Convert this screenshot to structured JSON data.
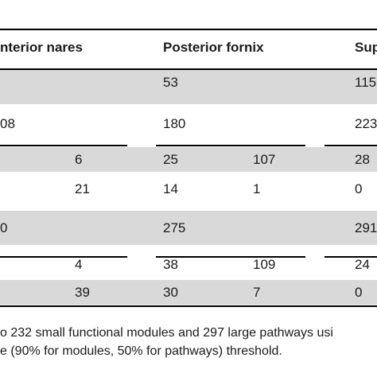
{
  "table": {
    "headers": [
      "nterior nares",
      "Posterior fornix",
      "Sup"
    ],
    "rows": [
      {
        "cells": [
          "",
          "53",
          "",
          "115"
        ]
      },
      {
        "cells": [
          "08",
          "180",
          "",
          "223"
        ]
      },
      {
        "cells": [
          "6",
          "25",
          "107",
          "28"
        ]
      },
      {
        "cells": [
          "21",
          "14",
          "1",
          "0"
        ]
      },
      {
        "cells": [
          "0",
          "275",
          "",
          "291"
        ]
      },
      {
        "cells": [
          "4",
          "38",
          "109",
          "24"
        ]
      },
      {
        "cells": [
          "39",
          "30",
          "7",
          "0"
        ]
      }
    ]
  },
  "footnote": {
    "line1": "o 232 small functional modules and 297 large pathways usi",
    "line2": "e (90% for modules, 50% for pathways) threshold."
  }
}
